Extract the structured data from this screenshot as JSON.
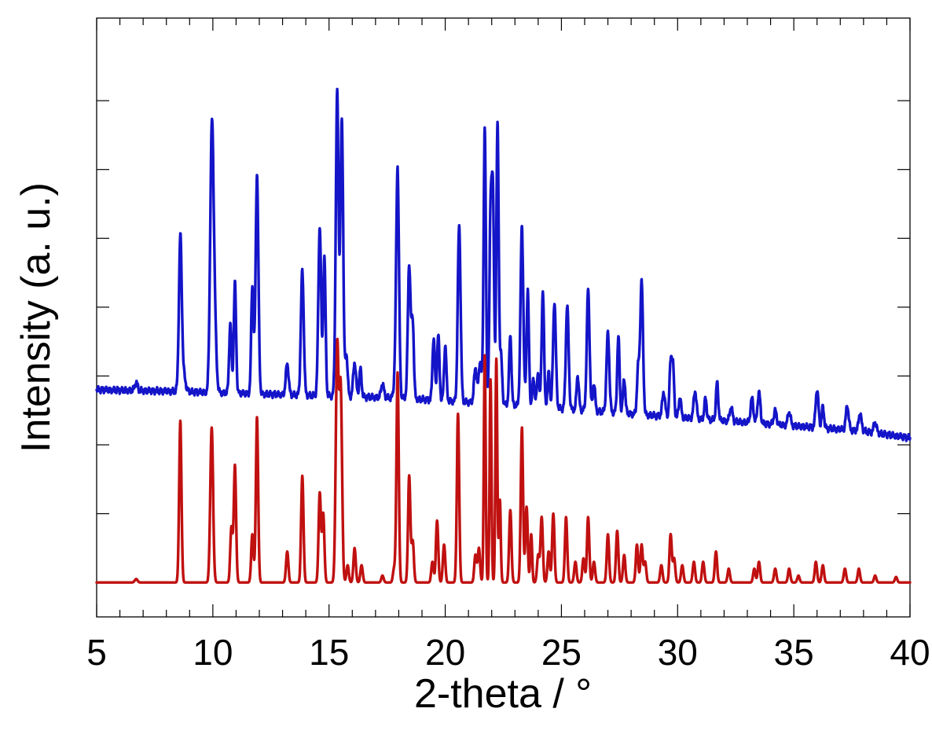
{
  "chart_data": {
    "type": "line",
    "title": "",
    "xlabel": "2-theta / °",
    "ylabel": "Intensity (a. u.)",
    "xlim": [
      5,
      40
    ],
    "ylim": [
      -0.5,
      8.2
    ],
    "x_ticks": [
      5,
      10,
      15,
      20,
      25,
      30,
      35,
      40
    ],
    "x_tick_labels": [
      "5",
      "10",
      "15",
      "20",
      "25",
      "30",
      "35",
      "40"
    ],
    "y_tick_labels_shown": false,
    "grid": false,
    "legend": "none",
    "series": [
      {
        "color": "#1414c8",
        "baseline": {
          "x": [
            5,
            8,
            14,
            18,
            22,
            26,
            30,
            34,
            38,
            40
          ],
          "y": [
            2.8,
            2.78,
            2.72,
            2.68,
            2.6,
            2.5,
            2.4,
            2.3,
            2.2,
            2.1
          ]
        },
        "peaks": [
          [
            6.7,
            0.12,
            0.06
          ],
          [
            8.6,
            2.1,
            0.06
          ],
          [
            8.7,
            0.3,
            0.1
          ],
          [
            9.95,
            3.3,
            0.07
          ],
          [
            10.05,
            1.3,
            0.08
          ],
          [
            10.75,
            1.0,
            0.05
          ],
          [
            10.95,
            1.6,
            0.05
          ],
          [
            11.7,
            1.55,
            0.05
          ],
          [
            11.9,
            3.2,
            0.06
          ],
          [
            13.2,
            0.45,
            0.06
          ],
          [
            13.85,
            1.8,
            0.06
          ],
          [
            14.6,
            2.45,
            0.06
          ],
          [
            14.8,
            2.0,
            0.05
          ],
          [
            15.35,
            4.4,
            0.06
          ],
          [
            15.55,
            4.0,
            0.06
          ],
          [
            15.75,
            0.6,
            0.05
          ],
          [
            16.1,
            0.5,
            0.06
          ],
          [
            16.35,
            0.4,
            0.05
          ],
          [
            17.3,
            0.2,
            0.06
          ],
          [
            17.85,
            0.25,
            0.06
          ],
          [
            17.95,
            3.3,
            0.06
          ],
          [
            18.45,
            1.95,
            0.06
          ],
          [
            18.6,
            1.1,
            0.05
          ],
          [
            19.5,
            0.9,
            0.05
          ],
          [
            19.7,
            0.95,
            0.05
          ],
          [
            20.0,
            0.8,
            0.05
          ],
          [
            20.6,
            2.55,
            0.06
          ],
          [
            21.3,
            0.5,
            0.06
          ],
          [
            21.5,
            0.6,
            0.06
          ],
          [
            21.7,
            4.0,
            0.05
          ],
          [
            21.95,
            2.6,
            0.05
          ],
          [
            22.05,
            2.9,
            0.05
          ],
          [
            22.25,
            4.05,
            0.05
          ],
          [
            22.4,
            0.7,
            0.05
          ],
          [
            23.3,
            2.6,
            0.06
          ],
          [
            23.55,
            1.7,
            0.05
          ],
          [
            23.8,
            0.4,
            0.05
          ],
          [
            22.8,
            1.0,
            0.05
          ],
          [
            24.0,
            0.5,
            0.05
          ],
          [
            24.2,
            1.7,
            0.05
          ],
          [
            24.45,
            0.5,
            0.05
          ],
          [
            24.7,
            1.55,
            0.06
          ],
          [
            25.25,
            1.5,
            0.06
          ],
          [
            25.7,
            0.5,
            0.05
          ],
          [
            26.15,
            1.75,
            0.06
          ],
          [
            26.4,
            0.4,
            0.05
          ],
          [
            27.0,
            1.15,
            0.06
          ],
          [
            27.45,
            1.1,
            0.05
          ],
          [
            27.7,
            0.5,
            0.05
          ],
          [
            28.3,
            0.65,
            0.05
          ],
          [
            28.45,
            1.95,
            0.06
          ],
          [
            29.4,
            0.35,
            0.06
          ],
          [
            29.7,
            0.75,
            0.05
          ],
          [
            29.8,
            0.7,
            0.05
          ],
          [
            30.1,
            0.3,
            0.05
          ],
          [
            30.75,
            0.4,
            0.06
          ],
          [
            31.2,
            0.3,
            0.05
          ],
          [
            31.7,
            0.55,
            0.05
          ],
          [
            32.3,
            0.2,
            0.06
          ],
          [
            33.2,
            0.35,
            0.06
          ],
          [
            33.5,
            0.45,
            0.06
          ],
          [
            34.2,
            0.2,
            0.06
          ],
          [
            34.8,
            0.2,
            0.06
          ],
          [
            36.0,
            0.55,
            0.06
          ],
          [
            36.25,
            0.3,
            0.05
          ],
          [
            37.3,
            0.35,
            0.06
          ],
          [
            37.85,
            0.25,
            0.06
          ],
          [
            38.5,
            0.15,
            0.06
          ]
        ]
      },
      {
        "color": "#c01010",
        "baseline": {
          "x": [
            5,
            40
          ],
          "y": [
            0.0,
            0.0
          ]
        },
        "peaks": [
          [
            6.7,
            0.05,
            0.06
          ],
          [
            8.6,
            2.35,
            0.05
          ],
          [
            9.95,
            2.25,
            0.06
          ],
          [
            10.8,
            0.8,
            0.05
          ],
          [
            10.95,
            1.7,
            0.05
          ],
          [
            11.7,
            0.7,
            0.05
          ],
          [
            11.9,
            2.4,
            0.05
          ],
          [
            13.2,
            0.45,
            0.05
          ],
          [
            13.85,
            1.55,
            0.05
          ],
          [
            14.6,
            1.3,
            0.05
          ],
          [
            14.75,
            1.0,
            0.05
          ],
          [
            15.35,
            3.4,
            0.06
          ],
          [
            15.5,
            2.8,
            0.06
          ],
          [
            15.8,
            0.25,
            0.05
          ],
          [
            16.1,
            0.5,
            0.05
          ],
          [
            16.4,
            0.25,
            0.05
          ],
          [
            17.3,
            0.1,
            0.05
          ],
          [
            17.8,
            0.2,
            0.05
          ],
          [
            17.95,
            3.05,
            0.05
          ],
          [
            18.45,
            1.55,
            0.05
          ],
          [
            18.6,
            0.6,
            0.05
          ],
          [
            19.45,
            0.3,
            0.05
          ],
          [
            19.65,
            0.9,
            0.05
          ],
          [
            19.95,
            0.55,
            0.05
          ],
          [
            20.55,
            2.45,
            0.05
          ],
          [
            21.3,
            0.4,
            0.05
          ],
          [
            21.45,
            0.5,
            0.05
          ],
          [
            21.7,
            3.3,
            0.04
          ],
          [
            21.95,
            2.95,
            0.04
          ],
          [
            22.2,
            3.25,
            0.04
          ],
          [
            22.35,
            1.2,
            0.04
          ],
          [
            22.8,
            1.05,
            0.05
          ],
          [
            23.3,
            2.25,
            0.05
          ],
          [
            23.5,
            1.1,
            0.05
          ],
          [
            23.7,
            0.7,
            0.04
          ],
          [
            24.0,
            0.4,
            0.05
          ],
          [
            24.15,
            0.95,
            0.05
          ],
          [
            24.45,
            0.45,
            0.05
          ],
          [
            24.65,
            1.0,
            0.05
          ],
          [
            25.2,
            0.95,
            0.05
          ],
          [
            25.6,
            0.3,
            0.05
          ],
          [
            25.95,
            0.35,
            0.05
          ],
          [
            26.15,
            0.95,
            0.05
          ],
          [
            26.4,
            0.3,
            0.05
          ],
          [
            27.0,
            0.7,
            0.05
          ],
          [
            27.4,
            0.75,
            0.05
          ],
          [
            27.7,
            0.4,
            0.05
          ],
          [
            28.25,
            0.55,
            0.05
          ],
          [
            28.45,
            0.55,
            0.05
          ],
          [
            28.6,
            0.3,
            0.05
          ],
          [
            29.3,
            0.25,
            0.05
          ],
          [
            29.7,
            0.7,
            0.05
          ],
          [
            29.85,
            0.35,
            0.05
          ],
          [
            30.2,
            0.25,
            0.05
          ],
          [
            30.7,
            0.3,
            0.05
          ],
          [
            31.1,
            0.3,
            0.05
          ],
          [
            31.65,
            0.45,
            0.05
          ],
          [
            32.2,
            0.2,
            0.05
          ],
          [
            33.3,
            0.2,
            0.05
          ],
          [
            33.5,
            0.3,
            0.05
          ],
          [
            34.2,
            0.2,
            0.05
          ],
          [
            34.8,
            0.2,
            0.05
          ],
          [
            35.2,
            0.1,
            0.05
          ],
          [
            35.95,
            0.3,
            0.05
          ],
          [
            36.25,
            0.25,
            0.05
          ],
          [
            37.2,
            0.2,
            0.05
          ],
          [
            37.8,
            0.2,
            0.05
          ],
          [
            38.5,
            0.1,
            0.05
          ],
          [
            39.4,
            0.08,
            0.05
          ]
        ]
      }
    ]
  }
}
